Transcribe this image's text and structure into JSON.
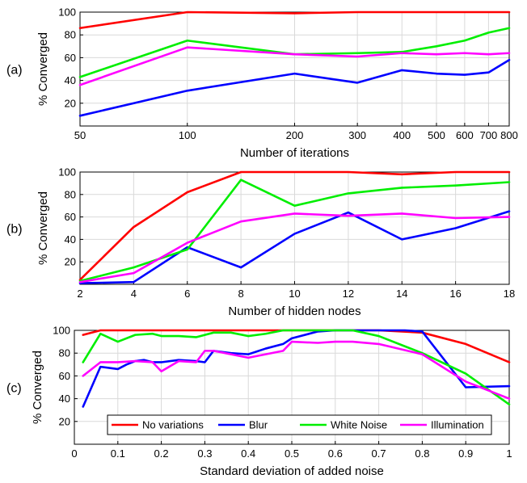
{
  "colors": {
    "No variations": "#ff0000",
    "Blur": "#0000ff",
    "White Noise": "#00ee00",
    "Illumination": "#ff00ff",
    "grid": "#d9d9d9",
    "axis": "#000000"
  },
  "chart_data": [
    {
      "type": "line",
      "panel_label": "(a)",
      "xlabel": "Number of iterations",
      "ylabel": "% Converged",
      "x_scale": "log",
      "xlim": [
        50,
        800
      ],
      "ylim": [
        0,
        100
      ],
      "grid": true,
      "x_ticks": [
        50,
        100,
        200,
        300,
        400,
        500,
        600,
        700,
        800
      ],
      "x_tick_labels": [
        "50",
        "100",
        "200",
        "300",
        "400",
        "500",
        "600",
        "700",
        "800"
      ],
      "y_ticks": [
        20,
        40,
        60,
        80,
        100
      ],
      "y_tick_labels": [
        "20",
        "40",
        "60",
        "80",
        "100"
      ],
      "x": [
        50,
        100,
        200,
        300,
        400,
        500,
        600,
        700,
        800
      ],
      "series": [
        {
          "name": "No variations",
          "values": [
            86,
            100,
            99,
            100,
            100,
            100,
            100,
            100,
            100
          ]
        },
        {
          "name": "Blur",
          "values": [
            9,
            31,
            46,
            38,
            49,
            46,
            45,
            47,
            58
          ]
        },
        {
          "name": "White Noise",
          "values": [
            43,
            75,
            63,
            64,
            65,
            70,
            75,
            82,
            86
          ]
        },
        {
          "name": "Illumination",
          "values": [
            36,
            69,
            63,
            61,
            64,
            63,
            64,
            63,
            64
          ]
        }
      ]
    },
    {
      "type": "line",
      "panel_label": "(b)",
      "xlabel": "Number of hidden nodes",
      "ylabel": "% Converged",
      "x_scale": "linear",
      "xlim": [
        2,
        18
      ],
      "ylim": [
        0,
        100
      ],
      "grid": true,
      "x_ticks": [
        2,
        4,
        6,
        8,
        10,
        12,
        14,
        16,
        18
      ],
      "x_tick_labels": [
        "2",
        "4",
        "6",
        "8",
        "10",
        "12",
        "14",
        "16",
        "18"
      ],
      "y_ticks": [
        20,
        40,
        60,
        80,
        100
      ],
      "y_tick_labels": [
        "20",
        "40",
        "60",
        "80",
        "100"
      ],
      "x": [
        2,
        4,
        6,
        8,
        10,
        12,
        14,
        16,
        18
      ],
      "series": [
        {
          "name": "No variations",
          "values": [
            4,
            51,
            82,
            100,
            100,
            100,
            98,
            100,
            100
          ]
        },
        {
          "name": "Blur",
          "values": [
            1,
            2,
            33,
            15,
            45,
            64,
            40,
            50,
            65
          ]
        },
        {
          "name": "White Noise",
          "values": [
            3,
            15,
            31,
            93,
            70,
            81,
            86,
            88,
            91
          ]
        },
        {
          "name": "Illumination",
          "values": [
            2,
            10,
            37,
            56,
            63,
            61,
            63,
            59,
            60
          ]
        }
      ]
    },
    {
      "type": "line",
      "panel_label": "(c)",
      "xlabel": "Standard deviation of added noise",
      "ylabel": "% Converged",
      "x_scale": "linear",
      "xlim": [
        0,
        1
      ],
      "ylim": [
        0,
        100
      ],
      "grid": true,
      "x_ticks": [
        0,
        0.1,
        0.2,
        0.3,
        0.4,
        0.5,
        0.6,
        0.7,
        0.8,
        0.9,
        1
      ],
      "x_tick_labels": [
        "0",
        "0.1",
        "0.2",
        "0.3",
        "0.4",
        "0.5",
        "0.6",
        "0.7",
        "0.8",
        "0.9",
        "1"
      ],
      "y_ticks": [
        20,
        40,
        60,
        80,
        100
      ],
      "y_tick_labels": [
        "20",
        "40",
        "60",
        "80",
        "100"
      ],
      "legend": {
        "placement": "bottom",
        "entries": [
          "No variations",
          "Blur",
          "White Noise",
          "Illumination"
        ]
      },
      "series": [
        {
          "name": "No variations",
          "x": [
            0.02,
            0.06,
            0.1,
            0.2,
            0.3,
            0.4,
            0.5,
            0.6,
            0.7,
            0.8,
            0.9,
            1.0
          ],
          "values": [
            96,
            100,
            100,
            100,
            100,
            100,
            100,
            100,
            100,
            98,
            88,
            72
          ]
        },
        {
          "name": "Blur",
          "x": [
            0.02,
            0.06,
            0.1,
            0.12,
            0.14,
            0.16,
            0.18,
            0.2,
            0.24,
            0.28,
            0.3,
            0.32,
            0.36,
            0.4,
            0.44,
            0.48,
            0.5,
            0.56,
            0.6,
            0.64,
            0.7,
            0.76,
            0.8,
            0.9,
            1.0
          ],
          "values": [
            33,
            68,
            66,
            70,
            73,
            74,
            72,
            72,
            74,
            73,
            72,
            82,
            80,
            79,
            84,
            88,
            93,
            99,
            100,
            100,
            100,
            100,
            99,
            50,
            51
          ]
        },
        {
          "name": "White Noise",
          "x": [
            0.02,
            0.06,
            0.1,
            0.14,
            0.18,
            0.2,
            0.24,
            0.28,
            0.32,
            0.36,
            0.4,
            0.44,
            0.48,
            0.52,
            0.56,
            0.6,
            0.64,
            0.7,
            0.8,
            0.9,
            1.0
          ],
          "values": [
            72,
            97,
            90,
            96,
            97,
            95,
            95,
            94,
            98,
            98,
            95,
            97,
            100,
            100,
            100,
            100,
            100,
            95,
            80,
            62,
            35
          ]
        },
        {
          "name": "Illumination",
          "x": [
            0.02,
            0.06,
            0.1,
            0.14,
            0.18,
            0.2,
            0.24,
            0.28,
            0.3,
            0.32,
            0.36,
            0.4,
            0.44,
            0.48,
            0.5,
            0.56,
            0.6,
            0.64,
            0.7,
            0.8,
            0.9,
            1.0
          ],
          "values": [
            60,
            72,
            72,
            73,
            72,
            64,
            73,
            72,
            82,
            82,
            79,
            76,
            79,
            82,
            90,
            89,
            90,
            90,
            88,
            79,
            55,
            40
          ]
        }
      ]
    }
  ]
}
